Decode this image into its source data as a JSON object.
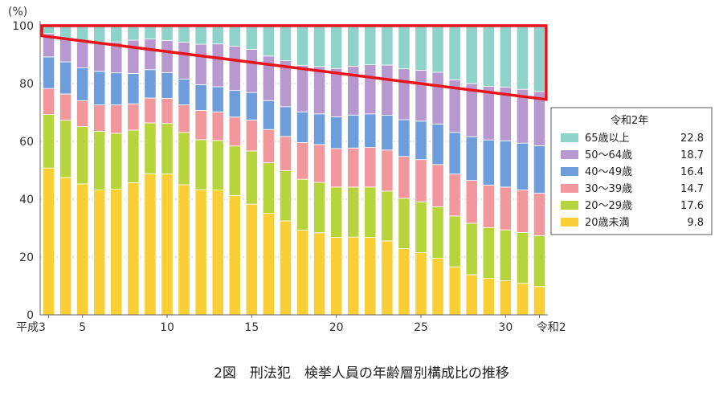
{
  "chart_data": {
    "type": "bar",
    "stacked": true,
    "caption": "2図　刑法犯　検挙人員の年齢層別構成比の推移",
    "y_unit": "(%)",
    "ylim": [
      0,
      100
    ],
    "y_ticks": [
      "0",
      "20",
      "40",
      "60",
      "80",
      "100"
    ],
    "x_tick_labels": [
      "平成3",
      "5",
      "10",
      "15",
      "20",
      "25",
      "30",
      "令和2"
    ],
    "x_tick_positions": [
      0,
      2,
      7,
      12,
      17,
      22,
      27,
      29
    ],
    "categories": [
      "H3",
      "H4",
      "H5",
      "H6",
      "H7",
      "H8",
      "H9",
      "H10",
      "H11",
      "H12",
      "H13",
      "H14",
      "H15",
      "H16",
      "H17",
      "H18",
      "H19",
      "H20",
      "H21",
      "H22",
      "H23",
      "H24",
      "H25",
      "H26",
      "H27",
      "H28",
      "H29",
      "H30",
      "R1",
      "R2"
    ],
    "series": [
      {
        "key": "u20",
        "color": "#f9cf35",
        "values": [
          50.8,
          47.5,
          45.3,
          43.2,
          43.5,
          45.7,
          48.8,
          48.7,
          45.0,
          43.3,
          43.2,
          41.3,
          38.3,
          35.1,
          32.5,
          29.3,
          28.4,
          26.8,
          26.9,
          26.8,
          25.6,
          22.9,
          21.5,
          19.6,
          16.6,
          13.9,
          12.6,
          11.8,
          10.9,
          9.8
        ]
      },
      {
        "key": "a20_29",
        "color": "#b7d43c",
        "values": [
          18.5,
          19.8,
          19.8,
          20.3,
          19.3,
          18.2,
          17.6,
          17.5,
          18.1,
          17.3,
          17.1,
          17.1,
          18.4,
          17.5,
          17.4,
          17.6,
          17.4,
          17.4,
          17.3,
          17.4,
          17.2,
          17.4,
          17.6,
          17.8,
          17.6,
          17.8,
          17.6,
          17.6,
          17.6,
          17.6
        ]
      },
      {
        "key": "a30_39",
        "color": "#f2979c",
        "values": [
          9.0,
          9.1,
          9.0,
          9.1,
          9.8,
          9.1,
          8.6,
          8.7,
          9.5,
          10.1,
          9.9,
          10.0,
          10.7,
          11.5,
          11.8,
          12.7,
          13.1,
          13.3,
          13.5,
          13.7,
          14.2,
          14.5,
          14.6,
          14.6,
          14.5,
          14.8,
          14.7,
          14.8,
          14.7,
          14.7
        ]
      },
      {
        "key": "a40_49",
        "color": "#6d9edb",
        "values": [
          10.9,
          11.1,
          11.3,
          11.6,
          11.1,
          10.5,
          9.8,
          8.9,
          8.9,
          8.9,
          8.7,
          9.2,
          9.5,
          10.0,
          10.3,
          10.6,
          10.6,
          11.0,
          11.4,
          11.6,
          12.0,
          12.7,
          13.3,
          14.0,
          14.4,
          15.1,
          15.6,
          16.0,
          16.2,
          16.4
        ]
      },
      {
        "key": "a50_64",
        "color": "#b799cf",
        "values": [
          8.1,
          8.2,
          9.0,
          10.0,
          10.7,
          11.5,
          10.6,
          11.1,
          12.8,
          14.0,
          14.8,
          15.3,
          14.9,
          15.4,
          15.9,
          16.1,
          16.4,
          16.7,
          16.9,
          17.0,
          17.4,
          17.6,
          17.6,
          17.9,
          18.2,
          18.4,
          18.5,
          18.6,
          18.6,
          18.7
        ]
      },
      {
        "key": "a65plus",
        "color": "#8fd2ca",
        "values": [
          2.7,
          4.3,
          5.6,
          5.8,
          5.6,
          5.0,
          4.6,
          5.1,
          5.7,
          6.4,
          6.3,
          7.1,
          8.2,
          10.5,
          12.1,
          13.7,
          14.1,
          14.8,
          14.0,
          13.5,
          13.6,
          14.9,
          15.4,
          16.1,
          18.7,
          20.0,
          21.0,
          21.2,
          22.0,
          22.8
        ]
      }
    ],
    "legend": {
      "title": "令和2年",
      "position": "right",
      "items": [
        {
          "label": "65歳以上",
          "value": "22.8",
          "color": "#8fd2ca"
        },
        {
          "label": "50～64歳",
          "value": "18.7",
          "color": "#b799cf"
        },
        {
          "label": "40～49歳",
          "value": "16.4",
          "color": "#6d9edb"
        },
        {
          "label": "30～39歳",
          "value": "14.7",
          "color": "#f2979c"
        },
        {
          "label": "20～29歳",
          "value": "17.6",
          "color": "#b7d43c"
        },
        {
          "label": "20歳未満",
          "value": "9.8",
          "color": "#f9cf35"
        }
      ]
    },
    "annotation": {
      "type": "highlight-polygon",
      "color": "#e8141b",
      "points": [
        [
          -0.4,
          100
        ],
        [
          29.4,
          100
        ],
        [
          29.4,
          74.5
        ],
        [
          -0.4,
          96.5
        ]
      ]
    }
  }
}
